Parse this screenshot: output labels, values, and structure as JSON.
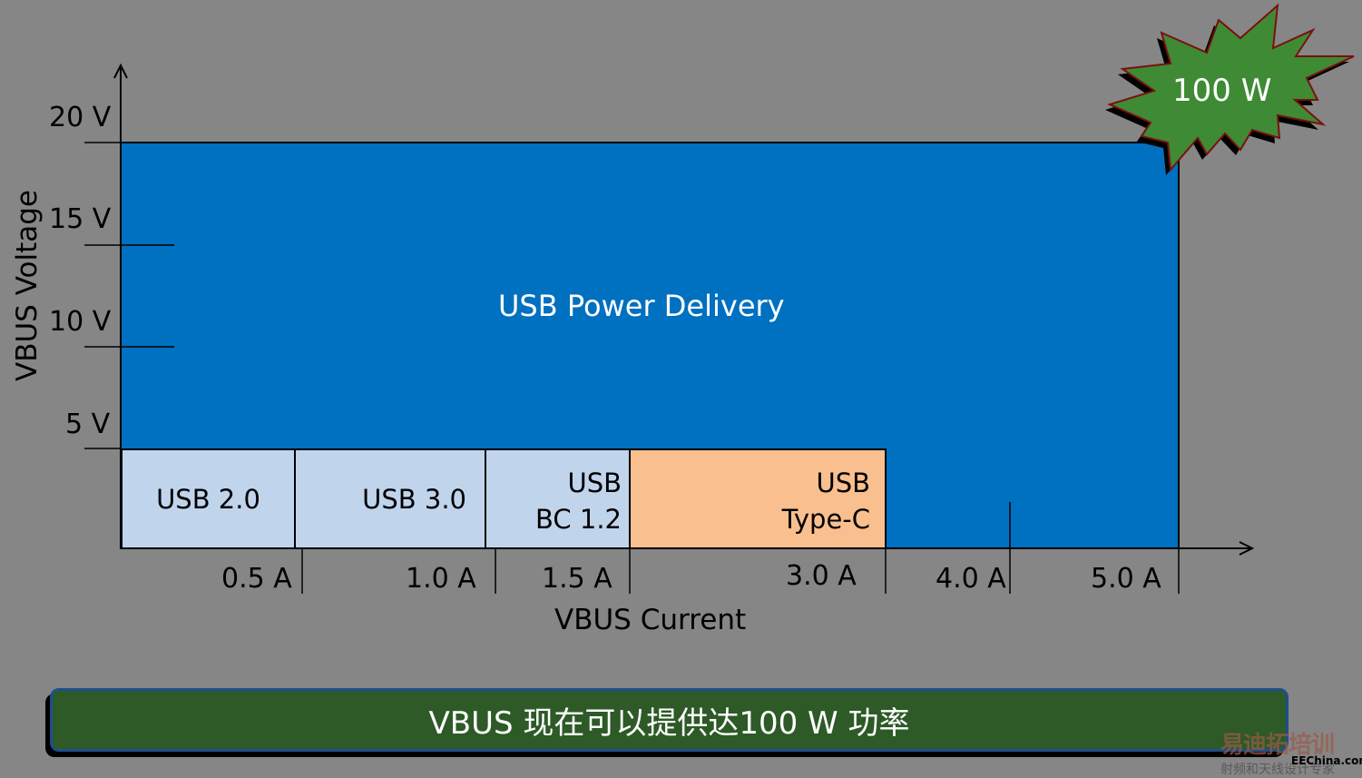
{
  "diagram": {
    "y_axis_label": "VBUS Voltage",
    "x_axis_label": "VBUS Current",
    "y_ticks": [
      "20 V",
      "15 V",
      "10 V",
      "5 V"
    ],
    "x_ticks": [
      "0.5 A",
      "1.0 A",
      "1.5 A",
      "3.0 A",
      "4.0 A",
      "5.0 A"
    ],
    "regions": {
      "pd": "USB Power Delivery",
      "usb2": "USB 2.0",
      "usb3": "USB 3.0",
      "bc_line1": "USB",
      "bc_line2": "BC 1.2",
      "typec_line1": "USB",
      "typec_line2": "Type-C"
    },
    "burst": "100 W",
    "banner": "VBUS 现在可以提供达100 W 功率",
    "colors": {
      "pd": "#0070C0",
      "legacy": "#C0D4EC",
      "typec": "#F9BF8F",
      "burst": "#3F8A35",
      "banner": "#2D5A27",
      "background": "#868686"
    }
  },
  "watermark": {
    "line1": "易迪拓培训",
    "line2": "射频和天线设计专家",
    "site": "EEChina.com"
  }
}
